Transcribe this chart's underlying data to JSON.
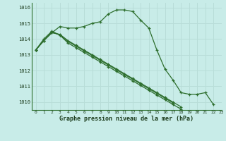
{
  "title": "Graphe pression niveau de la mer (hPa)",
  "bg_color": "#c8ece8",
  "grid_color": "#b8ddd8",
  "line_color": "#2d6e2d",
  "xlim": [
    -0.5,
    23
  ],
  "ylim": [
    1009.5,
    1016.3
  ],
  "yticks": [
    1010,
    1011,
    1012,
    1013,
    1014,
    1015,
    1016
  ],
  "xticks": [
    0,
    1,
    2,
    3,
    4,
    5,
    6,
    7,
    8,
    9,
    10,
    11,
    12,
    13,
    14,
    15,
    16,
    17,
    18,
    19,
    20,
    21,
    22,
    23
  ],
  "series": [
    {
      "x": [
        0,
        1,
        2,
        3,
        4,
        5,
        6,
        7,
        8,
        9,
        10,
        11,
        12,
        13,
        14,
        15,
        16,
        17,
        18,
        19,
        20,
        21,
        22
      ],
      "y": [
        1013.3,
        1013.9,
        1014.4,
        1014.8,
        1014.7,
        1014.7,
        1014.8,
        1015.0,
        1015.1,
        1015.6,
        1015.85,
        1015.85,
        1015.75,
        1015.2,
        1014.7,
        1013.3,
        1012.1,
        1011.4,
        1010.6,
        1010.5,
        1010.5,
        1010.6,
        1009.85
      ]
    },
    {
      "x": [
        0,
        1,
        2,
        3,
        4,
        5,
        6,
        7,
        8,
        9,
        10,
        11,
        12,
        13,
        14,
        15,
        16,
        17,
        18
      ],
      "y": [
        1013.3,
        1013.9,
        1014.45,
        1014.25,
        1013.75,
        1013.45,
        1013.15,
        1012.85,
        1012.55,
        1012.25,
        1011.95,
        1011.65,
        1011.35,
        1011.05,
        1010.75,
        1010.45,
        1010.15,
        1009.85,
        1009.55
      ]
    },
    {
      "x": [
        0,
        1,
        2,
        3,
        4,
        5,
        6,
        7,
        8,
        9,
        10,
        11,
        12,
        13,
        14,
        15,
        16,
        17
      ],
      "y": [
        1013.3,
        1014.0,
        1014.5,
        1014.25,
        1013.85,
        1013.55,
        1013.25,
        1012.95,
        1012.65,
        1012.35,
        1012.05,
        1011.75,
        1011.45,
        1011.15,
        1010.85,
        1010.55,
        1010.25,
        1009.95
      ]
    },
    {
      "x": [
        0,
        1,
        2,
        3,
        4,
        5,
        6,
        7,
        8,
        9,
        10,
        11,
        12,
        13,
        14,
        15,
        16,
        17,
        18
      ],
      "y": [
        1013.3,
        1013.9,
        1014.4,
        1014.3,
        1013.9,
        1013.6,
        1013.3,
        1013.0,
        1012.7,
        1012.4,
        1012.1,
        1011.8,
        1011.5,
        1011.2,
        1010.9,
        1010.6,
        1010.3,
        1010.0,
        1009.7
      ]
    }
  ]
}
